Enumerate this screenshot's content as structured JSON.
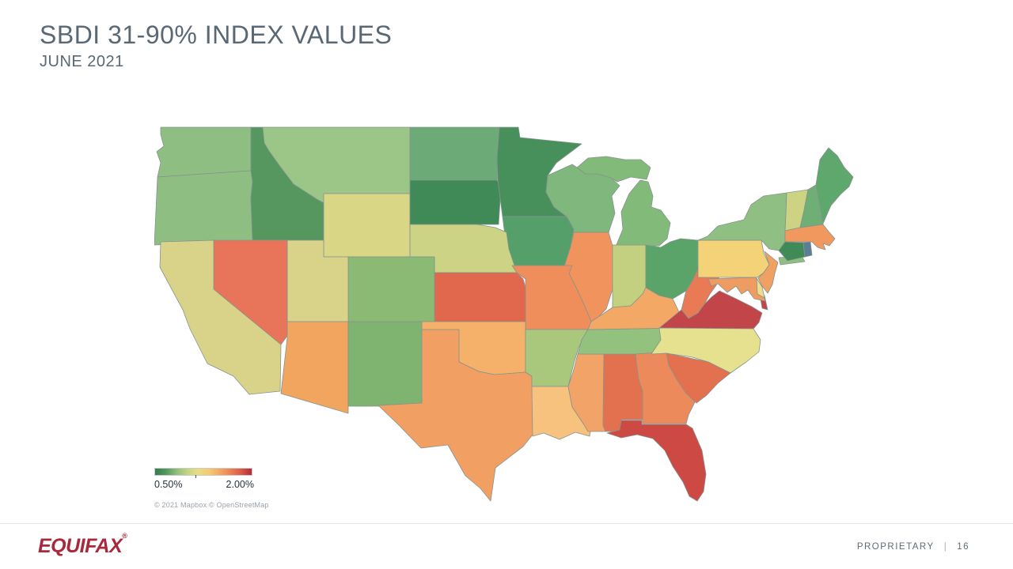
{
  "header": {
    "title": "SBDI 31-90% INDEX VALUES",
    "subtitle": "JUNE 2021"
  },
  "map": {
    "legend": {
      "min_label": "0.50%",
      "max_label": "2.00%",
      "tick_position": 0.42,
      "gradient": [
        "#2f7e4c",
        "#55975f",
        "#8fbe7d",
        "#c6d382",
        "#e8dd85",
        "#f3cb72",
        "#f5a863",
        "#ec8156",
        "#d95a48",
        "#b32c38"
      ]
    },
    "attribution": "© 2021 Mapbox © OpenStreetMap",
    "scale": {
      "min": 0.5,
      "max": 2.0,
      "unit": "%"
    },
    "states": [
      {
        "id": "WA",
        "name": "Washington",
        "value": 0.8,
        "color": "#8fbe83"
      },
      {
        "id": "OR",
        "name": "Oregon",
        "value": 0.8,
        "color": "#8fbe83"
      },
      {
        "id": "CA",
        "name": "California",
        "value": 1.15,
        "color": "#d8d388"
      },
      {
        "id": "ID",
        "name": "Idaho",
        "value": 0.65,
        "color": "#55975f"
      },
      {
        "id": "NV",
        "name": "Nevada",
        "value": 1.75,
        "color": "#e8745a"
      },
      {
        "id": "MT",
        "name": "Montana",
        "value": 0.85,
        "color": "#9cc687"
      },
      {
        "id": "WY",
        "name": "Wyoming",
        "value": 1.15,
        "color": "#d9d685"
      },
      {
        "id": "UT",
        "name": "Utah",
        "value": 1.15,
        "color": "#d8d388"
      },
      {
        "id": "CO",
        "name": "Colorado",
        "value": 0.8,
        "color": "#8aba74"
      },
      {
        "id": "AZ",
        "name": "Arizona",
        "value": 1.55,
        "color": "#f2a55f"
      },
      {
        "id": "NM",
        "name": "New Mexico",
        "value": 0.8,
        "color": "#7fb370"
      },
      {
        "id": "ND",
        "name": "North Dakota",
        "value": 0.7,
        "color": "#6cab77"
      },
      {
        "id": "SD",
        "name": "South Dakota",
        "value": 0.55,
        "color": "#3f8a56"
      },
      {
        "id": "NE",
        "name": "Nebraska",
        "value": 1.1,
        "color": "#ccd384"
      },
      {
        "id": "KS",
        "name": "Kansas",
        "value": 1.75,
        "color": "#e2684d"
      },
      {
        "id": "OK",
        "name": "Oklahoma",
        "value": 1.45,
        "color": "#f5b169"
      },
      {
        "id": "TX",
        "name": "Texas",
        "value": 1.55,
        "color": "#f29f63"
      },
      {
        "id": "MN",
        "name": "Minnesota",
        "value": 0.55,
        "color": "#47905c"
      },
      {
        "id": "IA",
        "name": "Iowa",
        "value": 0.7,
        "color": "#55a06a"
      },
      {
        "id": "MO",
        "name": "Missouri",
        "value": 1.6,
        "color": "#ef8d5b"
      },
      {
        "id": "AR",
        "name": "Arkansas",
        "value": 0.95,
        "color": "#a9c87c"
      },
      {
        "id": "LA",
        "name": "Louisiana",
        "value": 1.4,
        "color": "#f7c27d"
      },
      {
        "id": "WI",
        "name": "Wisconsin",
        "value": 0.75,
        "color": "#7fb77c"
      },
      {
        "id": "IL",
        "name": "Illinois",
        "value": 1.6,
        "color": "#f0935d"
      },
      {
        "id": "MI",
        "name": "Michigan",
        "value": 0.75,
        "color": "#82ba7a"
      },
      {
        "id": "IN",
        "name": "Indiana",
        "value": 1.05,
        "color": "#c2d07f"
      },
      {
        "id": "OH",
        "name": "Ohio",
        "value": 0.7,
        "color": "#5aa46a"
      },
      {
        "id": "KY",
        "name": "Kentucky",
        "value": 1.5,
        "color": "#f4a866"
      },
      {
        "id": "TN",
        "name": "Tennessee",
        "value": 0.8,
        "color": "#93c17e"
      },
      {
        "id": "MS",
        "name": "Mississippi",
        "value": 1.5,
        "color": "#f2a368"
      },
      {
        "id": "AL",
        "name": "Alabama",
        "value": 1.75,
        "color": "#e3714f"
      },
      {
        "id": "GA",
        "name": "Georgia",
        "value": 1.6,
        "color": "#ec8a5b"
      },
      {
        "id": "FL",
        "name": "Florida",
        "value": 1.9,
        "color": "#cc4944"
      },
      {
        "id": "SC",
        "name": "South Carolina",
        "value": 1.75,
        "color": "#e3714f"
      },
      {
        "id": "NC",
        "name": "North Carolina",
        "value": 1.2,
        "color": "#e6e18f"
      },
      {
        "id": "VA",
        "name": "Virginia",
        "value": 2.0,
        "color": "#c14549"
      },
      {
        "id": "WV",
        "name": "West Virginia",
        "value": 1.75,
        "color": "#e87a55"
      },
      {
        "id": "MD",
        "name": "Maryland",
        "value": 1.6,
        "color": "#ef9c63"
      },
      {
        "id": "DE",
        "name": "Delaware",
        "value": 1.2,
        "color": "#f0dc8c"
      },
      {
        "id": "PA",
        "name": "Pennsylvania",
        "value": 1.3,
        "color": "#f4d278"
      },
      {
        "id": "NJ",
        "name": "New Jersey",
        "value": 1.6,
        "color": "#f0a063"
      },
      {
        "id": "NY",
        "name": "New York",
        "value": 0.9,
        "color": "#8fbf82"
      },
      {
        "id": "VT",
        "name": "Vermont",
        "value": 1.1,
        "color": "#ccd383"
      },
      {
        "id": "NH",
        "name": "New Hampshire",
        "value": 0.75,
        "color": "#6fae74"
      },
      {
        "id": "ME",
        "name": "Maine",
        "value": 0.75,
        "color": "#5ea76d"
      },
      {
        "id": "MA",
        "name": "Massachusetts",
        "value": 1.6,
        "color": "#f0985e"
      },
      {
        "id": "CT",
        "name": "Connecticut",
        "value": 0.6,
        "color": "#3f8a56"
      },
      {
        "id": "RI",
        "name": "Rhode Island",
        "value": null,
        "color": "#5b7d95"
      }
    ]
  },
  "footer": {
    "logo_text": "EQUIFAX",
    "registered_mark": "®",
    "classification": "PROPRIETARY",
    "separator": "|",
    "page_number": "16"
  },
  "chart_data": {
    "type": "heatmap",
    "subtype": "us-state-choropleth",
    "title": "SBDI 31-90% INDEX VALUES",
    "subtitle": "JUNE 2021",
    "legend": {
      "min_label": "0.50%",
      "max_label": "2.00%",
      "position": "bottom-left",
      "colormap": "green-yellow-red"
    },
    "categories": [
      "WA",
      "OR",
      "CA",
      "ID",
      "NV",
      "MT",
      "WY",
      "UT",
      "CO",
      "AZ",
      "NM",
      "ND",
      "SD",
      "NE",
      "KS",
      "OK",
      "TX",
      "MN",
      "IA",
      "MO",
      "AR",
      "LA",
      "WI",
      "IL",
      "MI",
      "IN",
      "OH",
      "KY",
      "TN",
      "MS",
      "AL",
      "GA",
      "FL",
      "SC",
      "NC",
      "VA",
      "WV",
      "MD",
      "DE",
      "PA",
      "NJ",
      "NY",
      "VT",
      "NH",
      "ME",
      "MA",
      "CT",
      "RI"
    ],
    "values": [
      0.8,
      0.8,
      1.15,
      0.65,
      1.75,
      0.85,
      1.15,
      1.15,
      0.8,
      1.55,
      0.8,
      0.7,
      0.55,
      1.1,
      1.75,
      1.45,
      1.55,
      0.55,
      0.7,
      1.6,
      0.95,
      1.4,
      0.75,
      1.6,
      0.75,
      1.05,
      0.7,
      1.5,
      0.8,
      1.5,
      1.75,
      1.6,
      1.9,
      1.75,
      1.2,
      2.0,
      1.75,
      1.6,
      1.2,
      1.3,
      1.6,
      0.9,
      1.1,
      0.75,
      0.75,
      1.6,
      0.6,
      null
    ],
    "value_range": [
      0.5,
      2.0
    ],
    "note": "values estimated from choropleth color scale"
  }
}
